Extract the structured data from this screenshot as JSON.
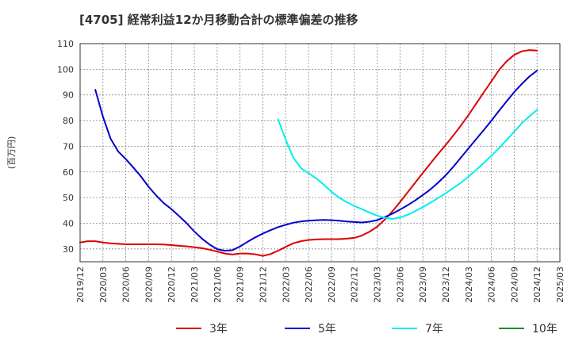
{
  "chart_data": {
    "type": "line",
    "title": "[4705]  経常利益12か月移動合計の標準偏差の推移",
    "ylabel": "(百万円)",
    "xlabel": "",
    "ylim": [
      25,
      110
    ],
    "yticks": [
      30,
      40,
      50,
      60,
      70,
      80,
      90,
      100,
      110
    ],
    "xticks": [
      "2019/12",
      "2020/03",
      "2020/06",
      "2020/09",
      "2020/12",
      "2021/03",
      "2021/06",
      "2021/09",
      "2021/12",
      "2022/03",
      "2022/06",
      "2022/09",
      "2022/12",
      "2023/03",
      "2023/06",
      "2023/09",
      "2023/12",
      "2024/03",
      "2024/06",
      "2024/09",
      "2024/12",
      "2025/03"
    ],
    "grid": true,
    "legend_position": "bottom",
    "series": [
      {
        "name": "3年",
        "color": "#dd0000",
        "x": [
          "2019/12",
          "2020/01",
          "2020/02",
          "2020/03",
          "2020/04",
          "2020/05",
          "2020/06",
          "2020/07",
          "2020/08",
          "2020/09",
          "2020/10",
          "2020/11",
          "2020/12",
          "2021/01",
          "2021/02",
          "2021/03",
          "2021/04",
          "2021/05",
          "2021/06",
          "2021/07",
          "2021/08",
          "2021/09",
          "2021/10",
          "2021/11",
          "2021/12",
          "2022/01",
          "2022/02",
          "2022/03",
          "2022/04",
          "2022/05",
          "2022/06",
          "2022/07",
          "2022/08",
          "2022/09",
          "2022/10",
          "2022/11",
          "2022/12",
          "2023/01",
          "2023/02",
          "2023/03",
          "2023/04",
          "2023/05",
          "2023/06",
          "2023/07",
          "2023/08",
          "2023/09",
          "2023/10",
          "2023/11",
          "2023/12",
          "2024/01",
          "2024/02",
          "2024/03",
          "2024/04",
          "2024/05",
          "2024/06",
          "2024/07",
          "2024/08",
          "2024/09",
          "2024/10",
          "2024/11",
          "2024/12"
        ],
        "values": [
          32.5,
          33,
          33,
          32.5,
          32.2,
          32,
          31.8,
          31.8,
          31.8,
          31.8,
          31.8,
          31.7,
          31.5,
          31.2,
          31,
          30.7,
          30.3,
          29.7,
          29,
          28.2,
          27.8,
          28.2,
          28.2,
          27.9,
          27.3,
          28,
          29.3,
          30.8,
          32.2,
          33,
          33.5,
          33.7,
          33.8,
          33.8,
          33.8,
          34,
          34.3,
          35.2,
          36.7,
          38.6,
          41.4,
          44.6,
          48.2,
          52,
          55.8,
          59.6,
          63.3,
          67,
          70.5,
          74.2,
          78.1,
          82.2,
          86.6,
          91,
          95.3,
          99.7,
          103.1,
          105.6,
          107,
          107.5,
          107.3
        ]
      },
      {
        "name": "5年",
        "color": "#0000cc",
        "x": [
          "2020/02",
          "2020/03",
          "2020/04",
          "2020/05",
          "2020/06",
          "2020/07",
          "2020/08",
          "2020/09",
          "2020/10",
          "2020/11",
          "2020/12",
          "2021/01",
          "2021/02",
          "2021/03",
          "2021/04",
          "2021/05",
          "2021/06",
          "2021/07",
          "2021/08",
          "2021/09",
          "2021/10",
          "2021/11",
          "2021/12",
          "2022/01",
          "2022/02",
          "2022/03",
          "2022/04",
          "2022/05",
          "2022/06",
          "2022/07",
          "2022/08",
          "2022/09",
          "2022/10",
          "2022/11",
          "2022/12",
          "2023/01",
          "2023/02",
          "2023/03",
          "2023/04",
          "2023/05",
          "2023/06",
          "2023/07",
          "2023/08",
          "2023/09",
          "2023/10",
          "2023/11",
          "2023/12",
          "2024/01",
          "2024/02",
          "2024/03",
          "2024/04",
          "2024/05",
          "2024/06",
          "2024/07",
          "2024/08",
          "2024/09",
          "2024/10",
          "2024/11",
          "2024/12"
        ],
        "values": [
          92,
          81.5,
          73,
          68,
          65,
          61.7,
          58.2,
          54.2,
          50.8,
          47.8,
          45.5,
          42.8,
          40,
          36.8,
          34,
          31.7,
          29.9,
          29.3,
          29.5,
          31,
          32.8,
          34.5,
          36,
          37.3,
          38.5,
          39.4,
          40.2,
          40.7,
          41,
          41.2,
          41.3,
          41.2,
          41,
          40.7,
          40.5,
          40.3,
          40.6,
          41.2,
          42.4,
          43.7,
          45.3,
          47,
          48.9,
          51,
          53.2,
          55.8,
          58.7,
          62,
          65.6,
          69.2,
          72.8,
          76.3,
          80,
          83.8,
          87.5,
          91.1,
          94.3,
          97.2,
          99.5
        ]
      },
      {
        "name": "7年",
        "color": "#00eeee",
        "x": [
          "2022/02",
          "2022/03",
          "2022/04",
          "2022/05",
          "2022/06",
          "2022/07",
          "2022/08",
          "2022/09",
          "2022/10",
          "2022/11",
          "2022/12",
          "2023/01",
          "2023/02",
          "2023/03",
          "2023/04",
          "2023/05",
          "2023/06",
          "2023/07",
          "2023/08",
          "2023/09",
          "2023/10",
          "2023/11",
          "2023/12",
          "2024/01",
          "2024/02",
          "2024/03",
          "2024/04",
          "2024/05",
          "2024/06",
          "2024/07",
          "2024/08",
          "2024/09",
          "2024/10",
          "2024/11",
          "2024/12"
        ],
        "values": [
          80.5,
          72.5,
          65.5,
          61.5,
          59.5,
          57.5,
          55,
          52.3,
          50,
          48.2,
          46.8,
          45.5,
          44.2,
          43,
          42.2,
          41.7,
          42.2,
          43.3,
          44.7,
          46.3,
          48,
          49.8,
          51.7,
          53.7,
          55.8,
          58.2,
          60.8,
          63.5,
          66.3,
          69.3,
          72.4,
          75.7,
          79,
          81.7,
          84.2
        ]
      },
      {
        "name": "10年",
        "color": "#228b22",
        "x": [],
        "values": []
      }
    ]
  }
}
